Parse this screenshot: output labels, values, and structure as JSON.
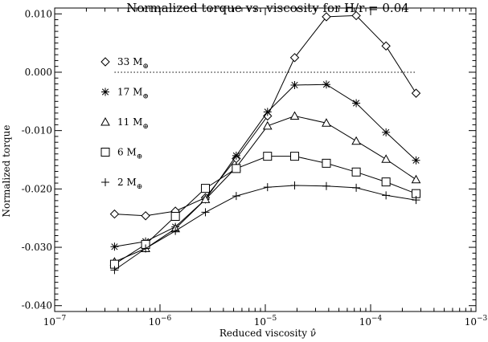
{
  "chart_data": {
    "type": "line",
    "title": "Normalized torque vs. viscosity for H/r = 0.04",
    "xlabel": "Reduced viscosity ν̂",
    "ylabel": "Normalized torque",
    "xscale": "log",
    "xlim": [
      1e-07,
      0.001
    ],
    "ylim": [
      -0.041,
      0.011
    ],
    "x_tick_labels": [
      {
        "value": 1e-07,
        "base": "10",
        "exp": "−7"
      },
      {
        "value": 1e-06,
        "base": "10",
        "exp": "−6"
      },
      {
        "value": 1e-05,
        "base": "10",
        "exp": "−5"
      },
      {
        "value": 0.0001,
        "base": "10",
        "exp": "−4"
      },
      {
        "value": 0.001,
        "base": "10",
        "exp": "−3"
      }
    ],
    "y_tick_labels": [
      {
        "value": 0.01,
        "label": "0.010"
      },
      {
        "value": 0.0,
        "label": "0.000"
      },
      {
        "value": -0.01,
        "label": "-0.010"
      },
      {
        "value": -0.02,
        "label": "-0.020"
      },
      {
        "value": -0.03,
        "label": "-0.030"
      },
      {
        "value": -0.04,
        "label": "-0.040"
      }
    ],
    "reference_line": {
      "y": 0.0,
      "style": "dotted"
    },
    "grid": false,
    "legend_position": "left",
    "x": [
      3.7e-07,
      7.3e-07,
      1.4e-06,
      2.7e-06,
      5.3e-06,
      1.05e-05,
      1.9e-05,
      3.8e-05,
      7.3e-05,
      0.00014,
      0.00027
    ],
    "series": [
      {
        "name": "33 M",
        "subscript": "⊕",
        "marker": "diamond",
        "values": [
          -0.0243,
          -0.0246,
          -0.0238,
          -0.0215,
          -0.0148,
          -0.0075,
          0.0025,
          0.0095,
          0.0097,
          0.0045,
          -0.0036
        ]
      },
      {
        "name": "17 M",
        "subscript": "⊕",
        "marker": "asterisk",
        "values": [
          -0.0299,
          -0.029,
          -0.0265,
          -0.0218,
          -0.0143,
          -0.0068,
          -0.0022,
          -0.0021,
          -0.0053,
          -0.0103,
          -0.0151
        ]
      },
      {
        "name": "11 M",
        "subscript": "⊕",
        "marker": "triangle",
        "values": [
          -0.0325,
          -0.0302,
          -0.0268,
          -0.0218,
          -0.0163,
          -0.0092,
          -0.0075,
          -0.0087,
          -0.0118,
          -0.0149,
          -0.0184
        ]
      },
      {
        "name": "6 M",
        "subscript": "⊕",
        "marker": "square",
        "values": [
          -0.0329,
          -0.0295,
          -0.0247,
          -0.0199,
          -0.0165,
          -0.0144,
          -0.0144,
          -0.0156,
          -0.0171,
          -0.0188,
          -0.0208
        ]
      },
      {
        "name": "2 M",
        "subscript": "⊕",
        "marker": "plus",
        "values": [
          -0.0339,
          -0.0302,
          -0.0272,
          -0.024,
          -0.0212,
          -0.0197,
          -0.0194,
          -0.0195,
          -0.0198,
          -0.0211,
          -0.0219
        ]
      }
    ]
  }
}
